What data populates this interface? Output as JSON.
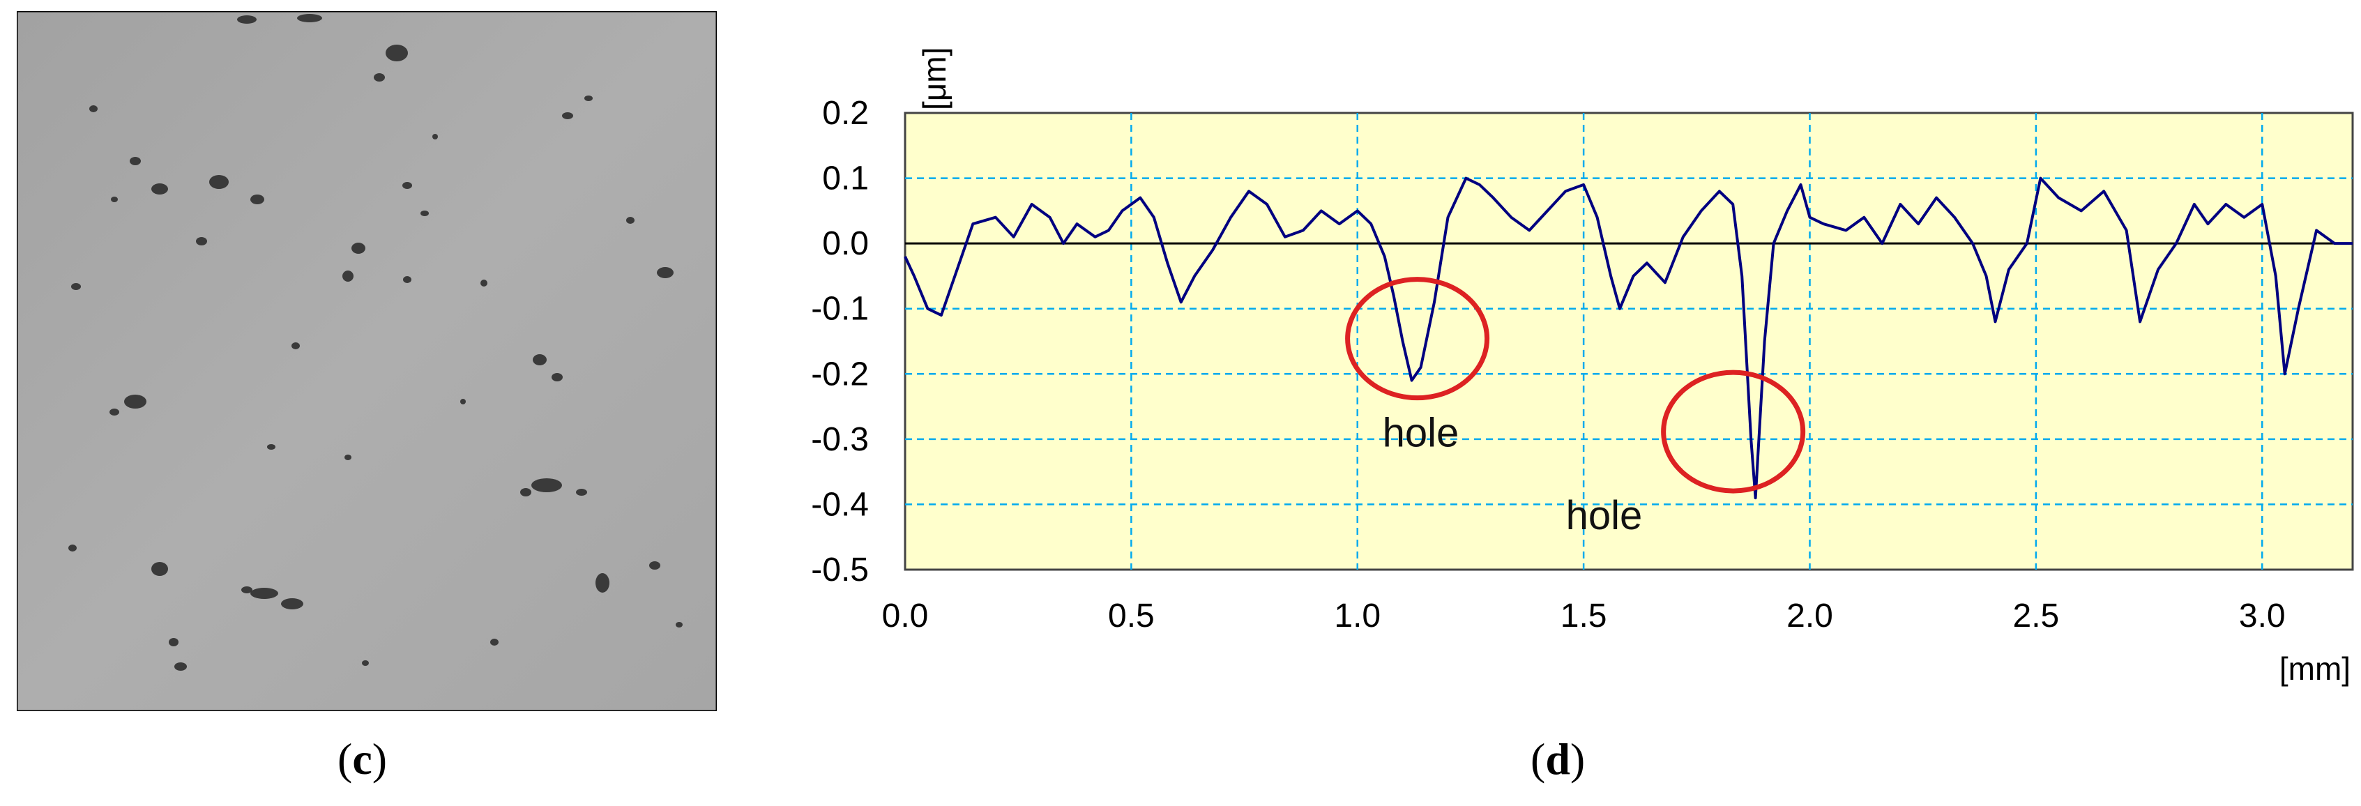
{
  "panels": {
    "c": {
      "label_open": "(",
      "label_letter": "c",
      "label_close": ")"
    },
    "d": {
      "label_open": "(",
      "label_letter": "d",
      "label_close": ")"
    }
  },
  "micrograph": {
    "background_color": "#a9a9a9",
    "pore_color": "#3a3a3a"
  },
  "chart_data": {
    "type": "line",
    "title": "",
    "xlabel": "[mm]",
    "ylabel": "[μm]",
    "xlim": [
      0.0,
      3.2
    ],
    "ylim": [
      -0.5,
      0.2
    ],
    "x_ticks": [
      "0.0",
      "0.5",
      "1.0",
      "1.5",
      "2.0",
      "2.5",
      "3.0"
    ],
    "y_ticks": [
      "0.2",
      "0.1",
      "0.0",
      "-0.1",
      "-0.2",
      "-0.3",
      "-0.4",
      "-0.5"
    ],
    "grid": true,
    "colors": {
      "plot_background": "#ffffcc",
      "grid": "#00aaee",
      "line": "#000080",
      "annotation": "#dd2222"
    },
    "series": [
      {
        "x": [
          0.0,
          0.02,
          0.05,
          0.08,
          0.11,
          0.15,
          0.2,
          0.24,
          0.28,
          0.32,
          0.35,
          0.38,
          0.42,
          0.45,
          0.48,
          0.52,
          0.55,
          0.58,
          0.61,
          0.64,
          0.68,
          0.72,
          0.76,
          0.8,
          0.84,
          0.88,
          0.92,
          0.96,
          1.0,
          1.03,
          1.06,
          1.08,
          1.1,
          1.12,
          1.14,
          1.17,
          1.2,
          1.24,
          1.27,
          1.3,
          1.34,
          1.38,
          1.42,
          1.46,
          1.5,
          1.53,
          1.56,
          1.58,
          1.61,
          1.64,
          1.68,
          1.72,
          1.76,
          1.8,
          1.83,
          1.85,
          1.87,
          1.88,
          1.9,
          1.92,
          1.95,
          1.98,
          2.0,
          2.03,
          2.08,
          2.12,
          2.16,
          2.2,
          2.24,
          2.28,
          2.32,
          2.36,
          2.39,
          2.41,
          2.44,
          2.48,
          2.51,
          2.55,
          2.6,
          2.65,
          2.7,
          2.73,
          2.77,
          2.81,
          2.85,
          2.88,
          2.92,
          2.96,
          3.0,
          3.03,
          3.05,
          3.08,
          3.12,
          3.16,
          3.2
        ],
        "y": [
          -0.02,
          -0.05,
          -0.1,
          -0.11,
          -0.05,
          0.03,
          0.04,
          0.01,
          0.06,
          0.04,
          0.0,
          0.03,
          0.01,
          0.02,
          0.05,
          0.07,
          0.04,
          -0.03,
          -0.09,
          -0.05,
          -0.01,
          0.04,
          0.08,
          0.06,
          0.01,
          0.02,
          0.05,
          0.03,
          0.05,
          0.03,
          -0.02,
          -0.08,
          -0.15,
          -0.21,
          -0.19,
          -0.09,
          0.04,
          0.1,
          0.09,
          0.07,
          0.04,
          0.02,
          0.05,
          0.08,
          0.09,
          0.04,
          -0.05,
          -0.1,
          -0.05,
          -0.03,
          -0.06,
          0.01,
          0.05,
          0.08,
          0.06,
          -0.05,
          -0.3,
          -0.39,
          -0.15,
          0.0,
          0.05,
          0.09,
          0.04,
          0.03,
          0.02,
          0.04,
          0.0,
          0.06,
          0.03,
          0.07,
          0.04,
          0.0,
          -0.05,
          -0.12,
          -0.04,
          0.0,
          0.1,
          0.07,
          0.05,
          0.08,
          0.02,
          -0.12,
          -0.04,
          0.0,
          0.06,
          0.03,
          0.06,
          0.04,
          0.06,
          -0.05,
          -0.2,
          -0.1,
          0.02,
          0.0,
          0.0
        ]
      }
    ],
    "annotations": [
      {
        "text": "hole",
        "x": 1.12,
        "y": -0.21
      },
      {
        "text": "hole",
        "x": 1.88,
        "y": -0.39
      }
    ]
  }
}
